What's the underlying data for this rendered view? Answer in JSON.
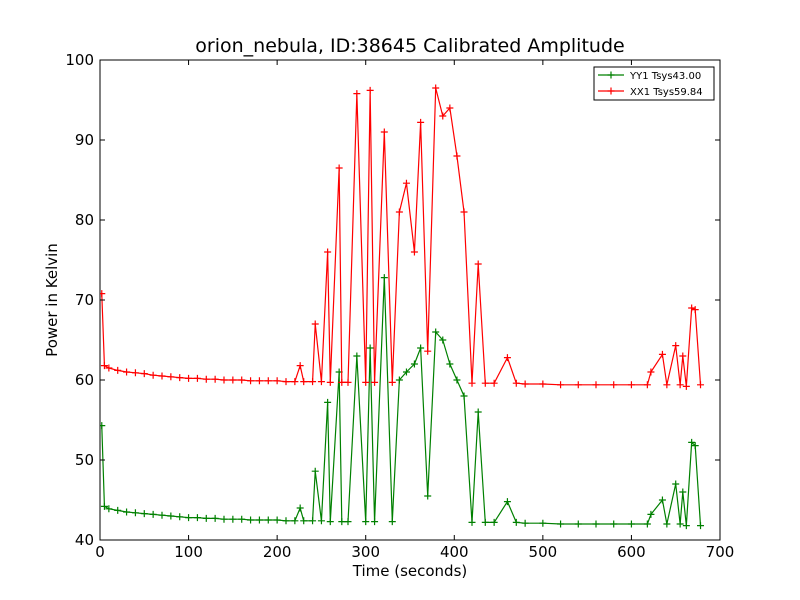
{
  "chart_data": {
    "type": "line",
    "title": "orion_nebula, ID:38645 Calibrated Amplitude",
    "xlabel": "Time (seconds)",
    "ylabel": "Power in Kelvin",
    "xlim": [
      0,
      700
    ],
    "ylim": [
      40,
      100
    ],
    "xticks": [
      "0",
      "100",
      "200",
      "300",
      "400",
      "500",
      "600",
      "700"
    ],
    "yticks": [
      "40",
      "50",
      "60",
      "70",
      "80",
      "90",
      "100"
    ],
    "grid": false,
    "legend_position": "top-right",
    "marker": "+",
    "series": [
      {
        "name": "YY1 Tsys43.00",
        "color": "#008000",
        "x": [
          2,
          5,
          10,
          20,
          30,
          40,
          50,
          60,
          70,
          80,
          90,
          100,
          110,
          120,
          130,
          140,
          150,
          160,
          170,
          180,
          190,
          200,
          210,
          220,
          226,
          230,
          240,
          243,
          250,
          257,
          260,
          270,
          273,
          280,
          290,
          300,
          305,
          310,
          321,
          330,
          338,
          346,
          355,
          362,
          370,
          379,
          387,
          395,
          403,
          411,
          420,
          427,
          435,
          445,
          460,
          470,
          480,
          500,
          520,
          540,
          560,
          580,
          600,
          618,
          622,
          635,
          640,
          650,
          655,
          658,
          662,
          668,
          672,
          678
        ],
        "y": [
          54.3,
          44.2,
          43.9,
          43.7,
          43.5,
          43.4,
          43.3,
          43.2,
          43.1,
          43.0,
          42.9,
          42.8,
          42.8,
          42.7,
          42.7,
          42.6,
          42.6,
          42.6,
          42.5,
          42.5,
          42.5,
          42.5,
          42.4,
          42.4,
          44.0,
          42.4,
          42.4,
          48.6,
          42.4,
          57.2,
          42.3,
          61.0,
          42.3,
          42.3,
          63.0,
          42.3,
          64.0,
          42.3,
          72.8,
          42.3,
          60.0,
          61.0,
          62.0,
          64.0,
          45.5,
          66.0,
          65.0,
          62.0,
          60.0,
          58.0,
          42.2,
          56.0,
          42.2,
          42.2,
          44.8,
          42.2,
          42.1,
          42.1,
          42.0,
          42.0,
          42.0,
          42.0,
          42.0,
          42.0,
          43.2,
          45.0,
          42.0,
          47.0,
          42.0,
          46.0,
          41.8,
          52.2,
          51.8,
          41.8
        ]
      },
      {
        "name": "XX1 Tsys59.84",
        "color": "#ff0000",
        "x": [
          2,
          5,
          10,
          20,
          30,
          40,
          50,
          60,
          70,
          80,
          90,
          100,
          110,
          120,
          130,
          140,
          150,
          160,
          170,
          180,
          190,
          200,
          210,
          220,
          226,
          230,
          240,
          243,
          250,
          257,
          260,
          270,
          273,
          280,
          290,
          300,
          305,
          310,
          321,
          330,
          338,
          346,
          355,
          362,
          370,
          379,
          387,
          395,
          403,
          411,
          420,
          427,
          435,
          445,
          460,
          470,
          480,
          500,
          520,
          540,
          560,
          580,
          600,
          618,
          622,
          635,
          640,
          650,
          655,
          658,
          662,
          668,
          672,
          678
        ],
        "y": [
          70.8,
          61.8,
          61.5,
          61.2,
          61.0,
          60.9,
          60.8,
          60.6,
          60.5,
          60.4,
          60.3,
          60.2,
          60.2,
          60.1,
          60.1,
          60.0,
          60.0,
          60.0,
          59.9,
          59.9,
          59.9,
          59.9,
          59.8,
          59.8,
          61.8,
          59.8,
          59.8,
          67.0,
          59.8,
          76.0,
          59.7,
          86.5,
          59.7,
          59.7,
          95.8,
          59.7,
          96.2,
          59.7,
          91.0,
          59.7,
          81.0,
          84.6,
          76.0,
          92.2,
          63.6,
          96.5,
          93.0,
          94.0,
          88.0,
          81.0,
          59.6,
          74.5,
          59.6,
          59.6,
          62.8,
          59.6,
          59.5,
          59.5,
          59.4,
          59.4,
          59.4,
          59.4,
          59.4,
          59.4,
          61.0,
          63.2,
          59.4,
          64.3,
          59.4,
          63.0,
          59.2,
          69.0,
          68.8,
          59.4
        ]
      }
    ]
  }
}
